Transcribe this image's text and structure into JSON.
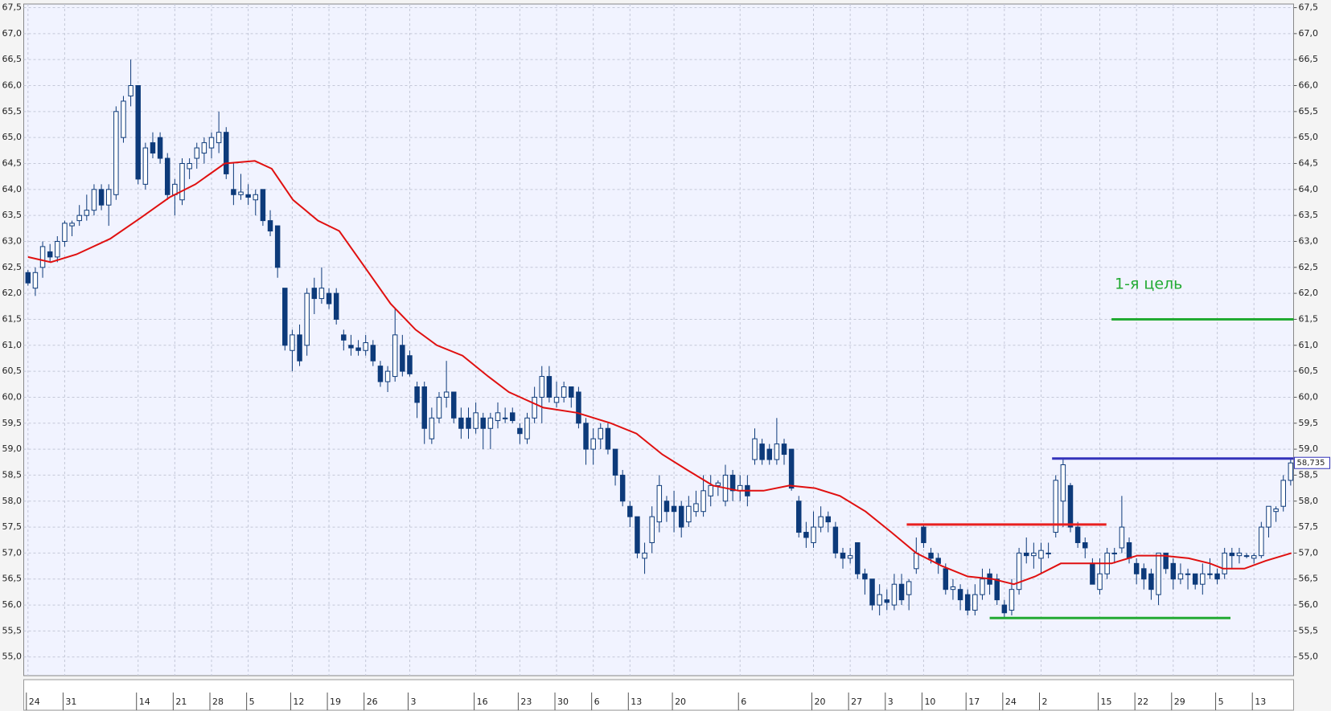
{
  "chart_data": {
    "type": "candlestick",
    "candles": [
      [
        62.4,
        62.45,
        62.15,
        62.2
      ],
      [
        62.1,
        62.5,
        61.95,
        62.4
      ],
      [
        62.5,
        63.0,
        62.3,
        62.9
      ],
      [
        62.8,
        62.95,
        62.6,
        62.7
      ],
      [
        62.7,
        63.1,
        62.6,
        63.0
      ],
      [
        63.0,
        63.4,
        62.9,
        63.35
      ],
      [
        63.3,
        63.4,
        63.1,
        63.35
      ],
      [
        63.4,
        63.7,
        63.3,
        63.5
      ],
      [
        63.5,
        63.9,
        63.4,
        63.6
      ],
      [
        63.6,
        64.1,
        63.5,
        64.0
      ],
      [
        64.0,
        64.1,
        63.6,
        63.7
      ],
      [
        63.7,
        64.1,
        63.3,
        64.0
      ],
      [
        63.9,
        65.6,
        63.8,
        65.5
      ],
      [
        65.0,
        65.8,
        64.9,
        65.7
      ],
      [
        65.8,
        66.5,
        65.6,
        66.0
      ],
      [
        66.0,
        66.0,
        64.1,
        64.2
      ],
      [
        64.1,
        64.9,
        64.0,
        64.8
      ],
      [
        64.9,
        65.1,
        64.6,
        64.7
      ],
      [
        65.0,
        65.1,
        64.5,
        64.6
      ],
      [
        64.6,
        64.7,
        63.8,
        63.9
      ],
      [
        63.9,
        64.2,
        63.5,
        64.1
      ],
      [
        63.8,
        64.6,
        63.7,
        64.5
      ],
      [
        64.4,
        64.6,
        64.2,
        64.5
      ],
      [
        64.6,
        64.9,
        64.4,
        64.8
      ],
      [
        64.7,
        65.0,
        64.5,
        64.9
      ],
      [
        64.8,
        65.1,
        64.6,
        65.0
      ],
      [
        64.9,
        65.5,
        64.7,
        65.1
      ],
      [
        65.1,
        65.2,
        64.2,
        64.3
      ],
      [
        64.0,
        64.5,
        63.7,
        63.9
      ],
      [
        63.9,
        64.3,
        63.8,
        63.95
      ],
      [
        63.9,
        64.1,
        63.7,
        63.85
      ],
      [
        63.8,
        64.0,
        63.5,
        63.9
      ],
      [
        64.0,
        64.0,
        63.3,
        63.4
      ],
      [
        63.4,
        63.6,
        63.1,
        63.2
      ],
      [
        63.3,
        63.3,
        62.3,
        62.5
      ],
      [
        62.1,
        62.1,
        60.9,
        61.0
      ],
      [
        60.9,
        61.3,
        60.5,
        61.2
      ],
      [
        61.2,
        61.4,
        60.6,
        60.7
      ],
      [
        61.0,
        62.1,
        60.8,
        62.0
      ],
      [
        62.1,
        62.3,
        61.6,
        61.9
      ],
      [
        61.9,
        62.5,
        61.8,
        62.1
      ],
      [
        62.0,
        62.1,
        61.7,
        61.8
      ],
      [
        62.0,
        62.1,
        61.4,
        61.5
      ],
      [
        61.2,
        61.3,
        60.9,
        61.1
      ],
      [
        61.0,
        61.2,
        60.8,
        60.95
      ],
      [
        60.95,
        61.1,
        60.8,
        60.9
      ],
      [
        60.9,
        61.2,
        60.8,
        61.05
      ],
      [
        61.0,
        61.1,
        60.6,
        60.7
      ],
      [
        60.6,
        60.7,
        60.2,
        60.3
      ],
      [
        60.3,
        60.6,
        60.1,
        60.5
      ],
      [
        60.4,
        61.7,
        60.3,
        61.2
      ],
      [
        61.0,
        61.2,
        60.4,
        60.5
      ],
      [
        60.8,
        60.9,
        60.4,
        60.45
      ],
      [
        60.2,
        60.3,
        59.6,
        59.9
      ],
      [
        60.2,
        60.3,
        59.1,
        59.4
      ],
      [
        59.2,
        59.8,
        59.1,
        59.6
      ],
      [
        59.6,
        60.1,
        59.5,
        60.0
      ],
      [
        60.0,
        60.7,
        59.8,
        60.1
      ],
      [
        60.1,
        60.1,
        59.5,
        59.6
      ],
      [
        59.6,
        59.8,
        59.2,
        59.4
      ],
      [
        59.6,
        59.8,
        59.2,
        59.4
      ],
      [
        59.4,
        59.9,
        59.3,
        59.7
      ],
      [
        59.6,
        59.7,
        59.0,
        59.4
      ],
      [
        59.4,
        59.7,
        59.0,
        59.6
      ],
      [
        59.55,
        59.9,
        59.4,
        59.7
      ],
      [
        59.6,
        59.8,
        59.5,
        59.6
      ],
      [
        59.7,
        59.8,
        59.5,
        59.55
      ],
      [
        59.4,
        59.5,
        59.1,
        59.3
      ],
      [
        59.2,
        59.7,
        59.1,
        59.6
      ],
      [
        59.6,
        60.2,
        59.5,
        60.0
      ],
      [
        60.0,
        60.6,
        59.5,
        60.4
      ],
      [
        60.4,
        60.6,
        59.9,
        60.0
      ],
      [
        59.9,
        60.3,
        59.8,
        60.0
      ],
      [
        60.0,
        60.3,
        59.9,
        60.2
      ],
      [
        60.2,
        60.2,
        59.8,
        60.0
      ],
      [
        60.1,
        60.2,
        59.4,
        59.5
      ],
      [
        59.5,
        59.6,
        58.7,
        59.0
      ],
      [
        59.0,
        59.4,
        58.7,
        59.2
      ],
      [
        59.2,
        59.5,
        59.0,
        59.4
      ],
      [
        59.4,
        59.5,
        58.9,
        59.0
      ],
      [
        59.0,
        59.0,
        58.3,
        58.5
      ],
      [
        58.5,
        58.6,
        57.9,
        58.0
      ],
      [
        57.9,
        58.0,
        57.5,
        57.7
      ],
      [
        57.7,
        57.7,
        56.9,
        57.0
      ],
      [
        56.9,
        57.2,
        56.6,
        57.0
      ],
      [
        57.2,
        57.9,
        57.0,
        57.7
      ],
      [
        57.6,
        58.5,
        57.4,
        58.3
      ],
      [
        58.0,
        58.1,
        57.6,
        57.8
      ],
      [
        57.9,
        58.2,
        57.4,
        57.8
      ],
      [
        57.9,
        58.0,
        57.3,
        57.5
      ],
      [
        57.6,
        58.1,
        57.5,
        57.9
      ],
      [
        57.8,
        58.2,
        57.7,
        57.95
      ],
      [
        57.8,
        58.5,
        57.7,
        58.2
      ],
      [
        58.1,
        58.5,
        57.9,
        58.3
      ],
      [
        58.3,
        58.4,
        58.1,
        58.35
      ],
      [
        58.0,
        58.7,
        57.9,
        58.5
      ],
      [
        58.5,
        58.6,
        58.0,
        58.2
      ],
      [
        58.2,
        58.5,
        58.0,
        58.3
      ],
      [
        58.3,
        58.5,
        57.9,
        58.1
      ],
      [
        58.8,
        59.4,
        58.7,
        59.2
      ],
      [
        59.1,
        59.2,
        58.7,
        58.8
      ],
      [
        59.0,
        59.1,
        58.7,
        58.8
      ],
      [
        58.8,
        59.6,
        58.7,
        59.1
      ],
      [
        59.1,
        59.2,
        58.7,
        58.9
      ],
      [
        59.0,
        59.0,
        58.2,
        58.25
      ],
      [
        58.0,
        58.1,
        57.3,
        57.4
      ],
      [
        57.4,
        57.6,
        57.1,
        57.3
      ],
      [
        57.2,
        57.8,
        57.1,
        57.5
      ],
      [
        57.5,
        57.9,
        57.4,
        57.7
      ],
      [
        57.7,
        57.8,
        57.4,
        57.6
      ],
      [
        57.5,
        57.6,
        56.9,
        57.0
      ],
      [
        57.0,
        57.1,
        56.7,
        56.9
      ],
      [
        56.9,
        57.1,
        56.8,
        56.95
      ],
      [
        57.2,
        57.2,
        56.5,
        56.6
      ],
      [
        56.6,
        56.7,
        56.2,
        56.5
      ],
      [
        56.5,
        56.5,
        55.9,
        56.0
      ],
      [
        56.0,
        56.4,
        55.8,
        56.2
      ],
      [
        56.1,
        56.3,
        55.9,
        56.05
      ],
      [
        56.0,
        56.6,
        55.9,
        56.4
      ],
      [
        56.4,
        56.6,
        56.0,
        56.1
      ],
      [
        56.2,
        56.5,
        55.9,
        56.45
      ],
      [
        56.7,
        57.3,
        56.6,
        57.0
      ],
      [
        57.5,
        57.55,
        57.1,
        57.2
      ],
      [
        57.0,
        57.1,
        56.8,
        56.9
      ],
      [
        56.9,
        57.0,
        56.6,
        56.8
      ],
      [
        56.7,
        56.8,
        56.2,
        56.3
      ],
      [
        56.3,
        56.5,
        56.1,
        56.35
      ],
      [
        56.3,
        56.4,
        55.9,
        56.1
      ],
      [
        56.2,
        56.3,
        55.8,
        55.9
      ],
      [
        55.9,
        56.4,
        55.8,
        56.2
      ],
      [
        56.2,
        56.7,
        56.1,
        56.5
      ],
      [
        56.6,
        56.7,
        56.2,
        56.4
      ],
      [
        56.5,
        56.6,
        56.0,
        56.1
      ],
      [
        56.0,
        56.1,
        55.75,
        55.85
      ],
      [
        55.9,
        56.5,
        55.8,
        56.3
      ],
      [
        56.3,
        57.1,
        56.2,
        57.0
      ],
      [
        57.0,
        57.3,
        56.8,
        56.95
      ],
      [
        56.95,
        57.2,
        56.7,
        57.0
      ],
      [
        56.9,
        57.2,
        56.6,
        57.05
      ],
      [
        57.0,
        57.2,
        56.9,
        57.0
      ],
      [
        57.4,
        58.5,
        57.3,
        58.4
      ],
      [
        58.0,
        58.8,
        57.5,
        58.7
      ],
      [
        58.3,
        58.35,
        57.4,
        57.5
      ],
      [
        57.5,
        57.6,
        57.1,
        57.2
      ],
      [
        57.2,
        57.3,
        56.9,
        57.1
      ],
      [
        56.8,
        56.9,
        56.4,
        56.4
      ],
      [
        56.3,
        56.9,
        56.2,
        56.6
      ],
      [
        56.6,
        57.1,
        56.5,
        57.0
      ],
      [
        57.0,
        57.1,
        56.8,
        57.0
      ],
      [
        57.1,
        58.1,
        57.0,
        57.5
      ],
      [
        57.2,
        57.3,
        56.8,
        56.9
      ],
      [
        56.8,
        56.9,
        56.4,
        56.6
      ],
      [
        56.7,
        56.8,
        56.3,
        56.5
      ],
      [
        56.6,
        56.7,
        56.1,
        56.3
      ],
      [
        56.2,
        57.0,
        56.0,
        57.0
      ],
      [
        57.0,
        57.0,
        56.6,
        56.7
      ],
      [
        56.8,
        56.9,
        56.3,
        56.5
      ],
      [
        56.5,
        56.8,
        56.4,
        56.6
      ],
      [
        56.6,
        56.7,
        56.3,
        56.6
      ],
      [
        56.6,
        56.6,
        56.3,
        56.4
      ],
      [
        56.4,
        56.8,
        56.2,
        56.6
      ],
      [
        56.6,
        56.9,
        56.5,
        56.6
      ],
      [
        56.6,
        56.7,
        56.4,
        56.5
      ],
      [
        56.6,
        57.1,
        56.5,
        57.0
      ],
      [
        57.0,
        57.1,
        56.7,
        56.95
      ],
      [
        56.95,
        57.1,
        56.8,
        57.0
      ],
      [
        56.95,
        57.0,
        56.9,
        56.95
      ],
      [
        56.9,
        57.0,
        56.8,
        56.95
      ],
      [
        56.95,
        57.6,
        56.9,
        57.5
      ],
      [
        57.5,
        57.9,
        57.3,
        57.9
      ],
      [
        57.8,
        57.9,
        57.6,
        57.85
      ],
      [
        57.9,
        58.5,
        57.8,
        58.4
      ],
      [
        58.4,
        58.8,
        58.3,
        58.735
      ]
    ],
    "up_color": "#ffffff",
    "down_color": "#0d3a7a",
    "moving_average": {
      "color": "#e01010",
      "x": [
        0,
        3.1,
        6.6,
        11.2,
        15.3,
        19.3,
        22.8,
        26.8,
        30.9,
        33.2,
        36.1,
        39.5,
        42.4,
        45.9,
        49.4,
        52.8,
        55.7,
        59.2,
        62.7,
        65.5,
        70.2,
        74.8,
        79.4,
        82.9,
        86.4,
        89.8,
        93.3,
        96.8,
        100.2,
        103.7,
        107.2,
        110.6,
        114.1,
        117.6,
        121,
        124.5,
        128,
        131.4,
        134.3,
        137.2,
        140.7,
        144.2,
        147.6,
        151.1,
        154.6,
        158.1,
        161,
        162.8,
        165.7,
        168.6,
        172.1
      ],
      "values": [
        62.7,
        62.6,
        62.75,
        63.05,
        63.45,
        63.85,
        64.1,
        64.5,
        64.55,
        64.4,
        63.8,
        63.4,
        63.2,
        62.5,
        61.8,
        61.3,
        61.0,
        60.8,
        60.4,
        60.1,
        59.8,
        59.7,
        59.5,
        59.3,
        58.9,
        58.6,
        58.3,
        58.2,
        58.2,
        58.3,
        58.25,
        58.1,
        57.8,
        57.4,
        57.0,
        56.75,
        56.55,
        56.5,
        56.4,
        56.55,
        56.8,
        56.8,
        56.8,
        56.95,
        56.95,
        56.9,
        56.8,
        56.7,
        56.7,
        56.85,
        57.0
      ]
    },
    "levels": [
      {
        "value": 57.55,
        "x": [
          119.7,
          146.9
        ],
        "color": "#e82020"
      },
      {
        "value": 55.75,
        "x": [
          131.0,
          163.8
        ],
        "color": "#22aa33"
      },
      {
        "value": 58.82,
        "x": [
          139.5,
          172.4
        ],
        "color": "#3333bb"
      },
      {
        "value": 61.5,
        "x": [
          147.6,
          172.4
        ],
        "color": "#22aa33"
      }
    ],
    "annotation": "1-я цель",
    "last_price": {
      "value": 58.735,
      "label": "58,735"
    },
    "xlim": [
      -0.58,
      172.4
    ],
    "xticks": [
      {
        "value": 0,
        "label": "24"
      },
      {
        "value": 5,
        "label": "31"
      },
      {
        "value": 15,
        "label": "14"
      },
      {
        "value": 20,
        "label": "21"
      },
      {
        "value": 25,
        "label": "28"
      },
      {
        "value": 30,
        "label": "5"
      },
      {
        "value": 36,
        "label": "12"
      },
      {
        "value": 41,
        "label": "19"
      },
      {
        "value": 46,
        "label": "26"
      },
      {
        "value": 52,
        "label": "3"
      },
      {
        "value": 61,
        "label": "16"
      },
      {
        "value": 67,
        "label": "23"
      },
      {
        "value": 72,
        "label": "30"
      },
      {
        "value": 77,
        "label": "6"
      },
      {
        "value": 82,
        "label": "13"
      },
      {
        "value": 88,
        "label": "20"
      },
      {
        "value": 97,
        "label": "6"
      },
      {
        "value": 107,
        "label": "20"
      },
      {
        "value": 112,
        "label": "27"
      },
      {
        "value": 117,
        "label": "3"
      },
      {
        "value": 122,
        "label": "10"
      },
      {
        "value": 128,
        "label": "17"
      },
      {
        "value": 133,
        "label": "24"
      },
      {
        "value": 138,
        "label": "2"
      },
      {
        "value": 146,
        "label": "15"
      },
      {
        "value": 151,
        "label": "22"
      },
      {
        "value": 156,
        "label": "29"
      },
      {
        "value": 162,
        "label": "5"
      },
      {
        "value": 167,
        "label": "13"
      }
    ],
    "ylim": [
      54.64,
      67.57
    ],
    "yticks": [
      {
        "value": 55,
        "label": "55,0"
      },
      {
        "value": 55.5,
        "label": "55,5"
      },
      {
        "value": 56,
        "label": "56,0"
      },
      {
        "value": 56.5,
        "label": "56,5"
      },
      {
        "value": 57,
        "label": "57,0"
      },
      {
        "value": 57.5,
        "label": "57,5"
      },
      {
        "value": 58,
        "label": "58,0"
      },
      {
        "value": 58.5,
        "label": "58,5"
      },
      {
        "value": 59,
        "label": "59,0"
      },
      {
        "value": 59.5,
        "label": "59,5"
      },
      {
        "value": 60,
        "label": "60,0"
      },
      {
        "value": 60.5,
        "label": "60,5"
      },
      {
        "value": 61,
        "label": "61,0"
      },
      {
        "value": 61.5,
        "label": "61,5"
      },
      {
        "value": 62,
        "label": "62,0"
      },
      {
        "value": 62.5,
        "label": "62,5"
      },
      {
        "value": 63,
        "label": "63,0"
      },
      {
        "value": 63.5,
        "label": "63,5"
      },
      {
        "value": 64,
        "label": "64,0"
      },
      {
        "value": 64.5,
        "label": "64,5"
      },
      {
        "value": 65,
        "label": "65,0"
      },
      {
        "value": 65.5,
        "label": "65,5"
      },
      {
        "value": 66,
        "label": "66,0"
      },
      {
        "value": 66.5,
        "label": "66,5"
      },
      {
        "value": 67,
        "label": "67,0"
      },
      {
        "value": 67.5,
        "label": "67,5"
      }
    ],
    "grid": true
  }
}
